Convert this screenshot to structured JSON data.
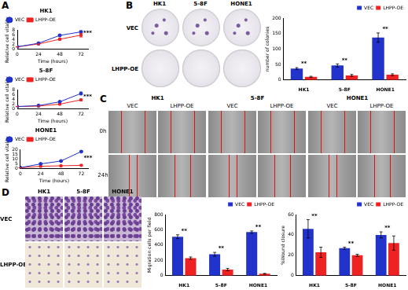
{
  "panel_labels": [
    "A",
    "B",
    "C",
    "D"
  ],
  "chart_data": [
    {
      "type": "line",
      "title": "HK1",
      "x": [
        0,
        24,
        48,
        72
      ],
      "xlim": [
        0,
        80
      ],
      "xticks": [
        0,
        24,
        48,
        72
      ],
      "ylim": [
        0,
        8
      ],
      "yticks": [
        0,
        2,
        4,
        6,
        8
      ],
      "x_label": "Time (hours)",
      "y_label": "Relative cell vitality",
      "legend": "top-left",
      "grid": false,
      "series": [
        {
          "name": "VEC",
          "color": "#2233cc",
          "marker": "circle",
          "values": [
            1,
            2.5,
            5.8,
            7.3
          ],
          "errors": [
            0.05,
            0.3,
            0.4,
            0.5
          ]
        },
        {
          "name": "LHPP-OE",
          "color": "#ee2222",
          "marker": "square",
          "values": [
            1,
            2.2,
            4.2,
            5.9
          ],
          "errors": [
            0.05,
            0.2,
            0.4,
            0.8
          ]
        }
      ],
      "annotations": [
        {
          "x": 72,
          "text": "***"
        }
      ]
    },
    {
      "type": "line",
      "title": "5-8F",
      "x": [
        0,
        24,
        48,
        72
      ],
      "xlim": [
        0,
        80
      ],
      "xticks": [
        0,
        24,
        48,
        72
      ],
      "ylim": [
        0,
        8
      ],
      "yticks": [
        0,
        2,
        4,
        6,
        8
      ],
      "x_label": "Time (hours)",
      "y_label": "Relative cell vitality",
      "legend": "top-left",
      "grid": false,
      "series": [
        {
          "name": "VEC",
          "color": "#2233cc",
          "marker": "circle",
          "values": [
            1,
            1.4,
            3,
            6.5
          ],
          "errors": [
            0.05,
            0.1,
            0.4,
            0.6
          ]
        },
        {
          "name": "LHPP-OE",
          "color": "#ee2222",
          "marker": "square",
          "values": [
            1,
            1.2,
            2,
            3.8
          ],
          "errors": [
            0.05,
            0.1,
            0.2,
            0.3
          ]
        }
      ],
      "annotations": [
        {
          "x": 72,
          "text": "***"
        }
      ]
    },
    {
      "type": "line",
      "title": "HONE1",
      "x": [
        0,
        24,
        48,
        72
      ],
      "xlim": [
        0,
        80
      ],
      "xticks": [
        0,
        24,
        48,
        72
      ],
      "ylim": [
        0,
        20
      ],
      "yticks": [
        0,
        5,
        10,
        15,
        20
      ],
      "x_label": "Time (hours)",
      "y_label": "Relative cell vitality",
      "legend": "top-left",
      "grid": false,
      "series": [
        {
          "name": "VEC",
          "color": "#2233cc",
          "marker": "circle",
          "values": [
            1,
            5,
            8,
            18
          ],
          "errors": [
            0.05,
            0.3,
            0.4,
            0.8
          ]
        },
        {
          "name": "LHPP-OE",
          "color": "#ee2222",
          "marker": "square",
          "values": [
            1,
            2.5,
            3,
            3.5
          ],
          "errors": [
            0.05,
            0.2,
            0.2,
            0.3
          ]
        }
      ],
      "annotations": [
        {
          "x": 72,
          "text": "***"
        }
      ]
    },
    {
      "type": "bar",
      "categories": [
        "HK1",
        "5-8F",
        "HONE1"
      ],
      "y_label": "number of colonies",
      "ylim": [
        0,
        200
      ],
      "yticks": [
        0,
        50,
        100,
        150,
        200
      ],
      "legend": "top-right",
      "grid": false,
      "series": [
        {
          "name": "VEC",
          "color": "#2233cc",
          "values": [
            37,
            47,
            137
          ],
          "errors": [
            3,
            5,
            15
          ]
        },
        {
          "name": "LHPP-OE",
          "color": "#ee2222",
          "values": [
            10,
            15,
            17
          ],
          "errors": [
            2,
            3,
            3
          ]
        }
      ],
      "annotations": [
        {
          "category": "HK1",
          "text": "**"
        },
        {
          "category": "5-8F",
          "text": "**"
        },
        {
          "category": "HONE1",
          "text": "**"
        }
      ]
    },
    {
      "type": "bar",
      "categories": [
        "HK1",
        "5-8F",
        "HONE1"
      ],
      "y_label": "Migration cells per field",
      "ylim": [
        0,
        800
      ],
      "yticks": [
        0,
        200,
        400,
        600,
        800
      ],
      "legend": "top-right",
      "grid": false,
      "series": [
        {
          "name": "VEC",
          "color": "#2233cc",
          "values": [
            510,
            280,
            570
          ],
          "errors": [
            25,
            25,
            15
          ]
        },
        {
          "name": "LHPP-OE",
          "color": "#ee2222",
          "values": [
            230,
            80,
            25
          ],
          "errors": [
            15,
            15,
            5
          ]
        }
      ],
      "annotations": [
        {
          "category": "HK1",
          "text": "**"
        },
        {
          "category": "5-8F",
          "text": "**"
        },
        {
          "category": "HONE1",
          "text": "**"
        }
      ]
    },
    {
      "type": "bar",
      "categories": [
        "HK1",
        "5-8F",
        "HONE1"
      ],
      "y_label": "%Wound closure",
      "ylim": [
        0,
        60
      ],
      "yticks": [
        0,
        20,
        40,
        60
      ],
      "legend": "top-right",
      "grid": false,
      "series": [
        {
          "name": "VEC",
          "color": "#2233cc",
          "values": [
            46,
            27,
            40
          ],
          "errors": [
            9,
            1,
            3
          ]
        },
        {
          "name": "LHPP-OE",
          "color": "#ee2222",
          "values": [
            23,
            20,
            32
          ],
          "errors": [
            5,
            1,
            7
          ]
        }
      ],
      "annotations": [
        {
          "category": "HK1",
          "text": "**"
        },
        {
          "category": "5-8F",
          "text": "**"
        },
        {
          "category": "HONE1",
          "text": "**"
        }
      ]
    }
  ],
  "colony_images": {
    "columns": [
      "HK1",
      "5-8F",
      "HONE1"
    ],
    "rows": [
      "VEC",
      "LHPP-OE"
    ]
  },
  "wound_images": {
    "cell_lines": [
      "HK1",
      "5-8F",
      "HONE1"
    ],
    "groups": [
      "VEC",
      "LHPP-OE"
    ],
    "times": [
      "0h",
      "24h"
    ]
  },
  "transwell_images": {
    "columns": [
      "HK1",
      "5-8F",
      "HONE1"
    ],
    "rows": [
      "VEC",
      "LHPP-OE"
    ]
  }
}
